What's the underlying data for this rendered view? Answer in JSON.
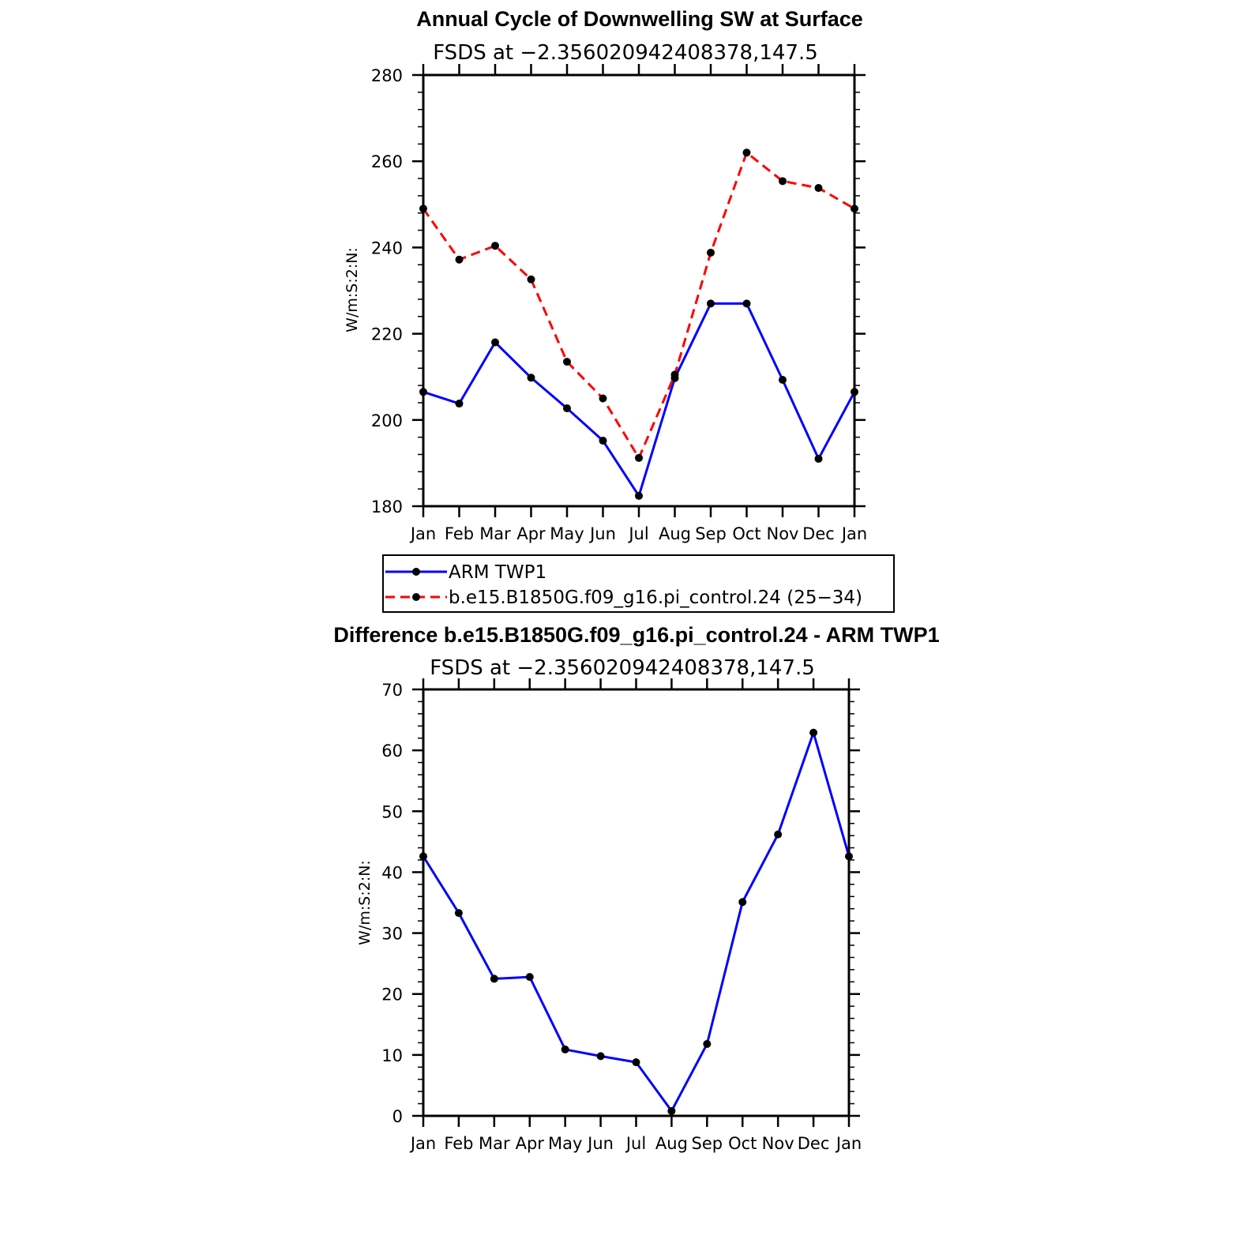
{
  "chart_data": [
    {
      "type": "line",
      "title": "Annual Cycle of Downwelling SW at Surface",
      "subtitle": "FSDS at −2.356020942408378,147.5",
      "ylabel": "W/m:S:2:N:",
      "categories": [
        "Jan",
        "Feb",
        "Mar",
        "Apr",
        "May",
        "Jun",
        "Jul",
        "Aug",
        "Sep",
        "Oct",
        "Nov",
        "Dec",
        "Jan"
      ],
      "ylim": [
        180,
        280
      ],
      "yticks": [
        180,
        200,
        220,
        240,
        260,
        280
      ],
      "series": [
        {
          "name": "ARM TWP1",
          "color": "#0000ff",
          "dash": "solid",
          "values": [
            206.5,
            203.8,
            218.0,
            209.8,
            202.7,
            195.2,
            182.4,
            209.7,
            227.0,
            227.0,
            209.3,
            191.0,
            206.5
          ]
        },
        {
          "name": "b.e15.B1850G.f09_g16.pi_control.24 (25−34)",
          "color": "#ff0000",
          "dash": "dashed",
          "values": [
            249.0,
            237.2,
            240.4,
            232.6,
            213.5,
            205.0,
            191.2,
            210.5,
            238.8,
            262.0,
            255.4,
            253.8,
            249.0
          ]
        }
      ],
      "grid": false,
      "legend": "below"
    },
    {
      "type": "line",
      "title": "Difference b.e15.B1850G.f09_g16.pi_control.24 - ARM TWP1",
      "subtitle": "FSDS at −2.356020942408378,147.5",
      "ylabel": "W/m:S:2:N:",
      "categories": [
        "Jan",
        "Feb",
        "Mar",
        "Apr",
        "May",
        "Jun",
        "Jul",
        "Aug",
        "Sep",
        "Oct",
        "Nov",
        "Dec",
        "Jan"
      ],
      "ylim": [
        0,
        70
      ],
      "yticks": [
        0,
        10,
        20,
        30,
        40,
        50,
        60,
        70
      ],
      "series": [
        {
          "color": "#0000ff",
          "dash": "solid",
          "values": [
            42.6,
            33.3,
            22.5,
            22.8,
            10.9,
            9.8,
            8.8,
            0.8,
            11.8,
            35.1,
            46.2,
            62.9,
            42.6
          ]
        }
      ],
      "grid": false
    }
  ]
}
